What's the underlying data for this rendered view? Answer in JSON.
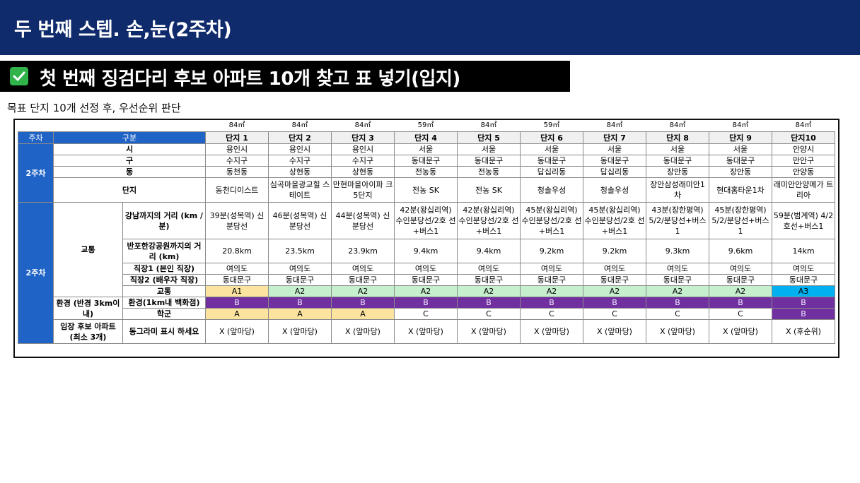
{
  "header": {
    "title": "두 번째 스텝. 손,눈(2주차)",
    "subtitle": "첫 번째 징검다리 후보 아파트 10개 찾고 표 넣기(입지)",
    "description": "목표 단지 10개 선정 후, 우선순위 판단"
  },
  "colors": {
    "top_bar": "#0f2b6b",
    "header_blue": "#1f63c6",
    "grade_A1": "#fce4a0",
    "grade_A2": "#c6efce",
    "grade_A3": "#00b0f0",
    "grade_B": "#7030a0"
  },
  "icons": {
    "check": "check-mark-icon"
  },
  "table": {
    "sizes": [
      "84㎡",
      "84㎡",
      "84㎡",
      "59㎡",
      "84㎡",
      "59㎡",
      "84㎡",
      "84㎡",
      "84㎡",
      "84㎡"
    ],
    "week_header": "주차",
    "category_header": "구분",
    "complex_headers": [
      "단지 1",
      "단지 2",
      "단지 3",
      "단지 4",
      "단지 5",
      "단지 6",
      "단지 7",
      "단지 8",
      "단지 9",
      "단지10"
    ],
    "week_label": "2주차",
    "labels": {
      "si": "시",
      "gu": "구",
      "dong": "동",
      "danji": "단지",
      "transport_group": "교통",
      "gangnam": "강남까지의 거리 (km / 분)",
      "banpo": "반포한강공원까지의 거리 (km)",
      "job1": "직장1 (본인 직장)",
      "job2": "직장2 (배우자 직장)",
      "transport_grade": "교통",
      "env_group": "환경 (반경 3km이내)",
      "env_grade": "환경(1km내 백화점)",
      "school": "학군",
      "visit_group": "임장 후보 아파트 (최소 3개)",
      "visit_note": "동그라미 표시 하세요"
    },
    "si": [
      "용인시",
      "용인시",
      "용인시",
      "서울",
      "서울",
      "서울",
      "서울",
      "서울",
      "서울",
      "안양시"
    ],
    "gu": [
      "수지구",
      "수지구",
      "수지구",
      "동대문구",
      "동대문구",
      "동대문구",
      "동대문구",
      "동대문구",
      "동대문구",
      "만안구"
    ],
    "dong": [
      "동천동",
      "상현동",
      "상현동",
      "전농동",
      "전농동",
      "답십리동",
      "답십리동",
      "장안동",
      "장안동",
      "안양동"
    ],
    "danji": [
      "동천디이스트",
      "심곡마을광교힐 스테이트",
      "만현마을아이파 크5단지",
      "전농 SK",
      "전농 SK",
      "청솔우성",
      "청솔우성",
      "장안삼성래미안1 차",
      "현대홈타운1차",
      "래미안안양메가 트리아"
    ],
    "gangnam": [
      "39분(성복역) 신분당선",
      "46분(성복역) 신분당선",
      "44분(성복역) 신분당선",
      "42분(왕십리역) 수인분당선/2호 선+버스1",
      "42분(왕십리역) 수인분당선/2호 선+버스1",
      "45분(왕십리역) 수인분당선/2호 선+버스1",
      "45분(왕십리역) 수인분당선/2호 선+버스1",
      "43분(장한평역) 5/2/분당선+버스 1",
      "45분(장한평역) 5/2/분당선+버스 1",
      "59분(범계역) 4/2호선+버스1"
    ],
    "banpo": [
      "20.8km",
      "23.5km",
      "23.9km",
      "9.4km",
      "9.4km",
      "9.2km",
      "9.2km",
      "9.3km",
      "9.6km",
      "14km"
    ],
    "job1": [
      "여의도",
      "여의도",
      "여의도",
      "여의도",
      "여의도",
      "여의도",
      "여의도",
      "여의도",
      "여의도",
      "여의도"
    ],
    "job2": [
      "동대문구",
      "동대문구",
      "동대문구",
      "동대문구",
      "동대문구",
      "동대문구",
      "동대문구",
      "동대문구",
      "동대문구",
      "동대문구"
    ],
    "transport": [
      "A1",
      "A2",
      "A2",
      "A2",
      "A2",
      "A2",
      "A2",
      "A2",
      "A2",
      "A3"
    ],
    "environment": [
      "B",
      "B",
      "B",
      "B",
      "B",
      "B",
      "B",
      "B",
      "B",
      "B"
    ],
    "school": [
      "A",
      "A",
      "A",
      "C",
      "C",
      "C",
      "C",
      "C",
      "C",
      "B"
    ],
    "visit": [
      "X (앞마당)",
      "X (앞마당)",
      "X (앞마당)",
      "X (앞마당)",
      "X (앞마당)",
      "X (앞마당)",
      "X (앞마당)",
      "X (앞마당)",
      "X (앞마당)",
      "X (후순위)"
    ]
  }
}
